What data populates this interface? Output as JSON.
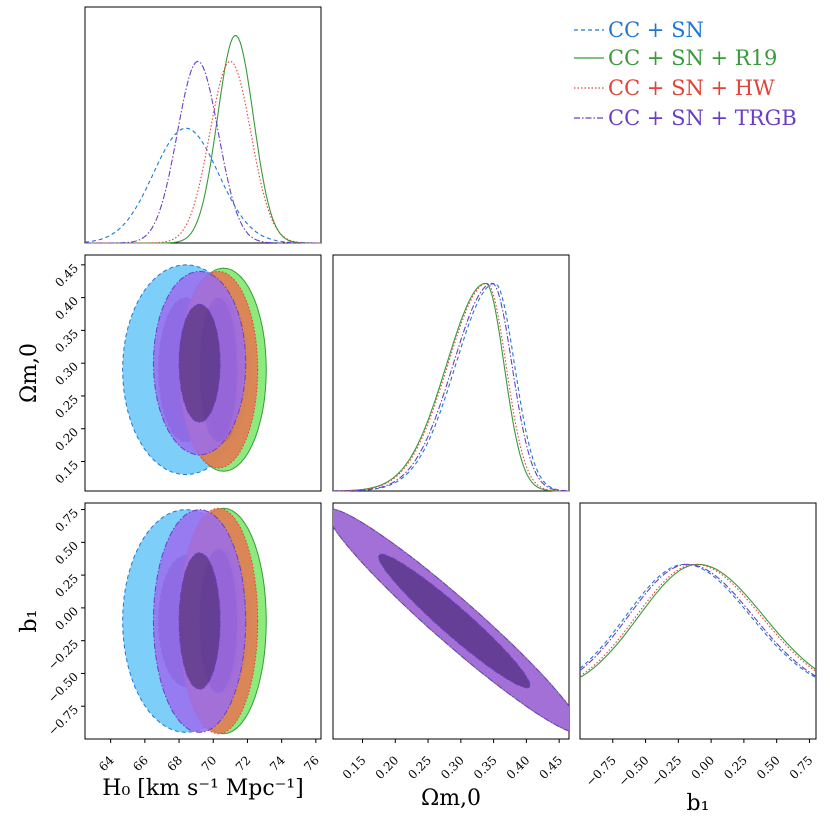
{
  "chart_data": {
    "type": "corner",
    "parameters": [
      {
        "key": "H0",
        "label": "H₀ [km s⁻¹ Mpc⁻¹]",
        "range": [
          62.5,
          76.3
        ],
        "ticks": [
          "64",
          "66",
          "68",
          "70",
          "72",
          "74",
          "76"
        ]
      },
      {
        "key": "Om",
        "label": "Ωm,0",
        "range": [
          0.105,
          0.465
        ],
        "ticks": [
          "0.15",
          "0.20",
          "0.25",
          "0.30",
          "0.35",
          "0.40",
          "0.45"
        ]
      },
      {
        "key": "b1",
        "label": "b₁",
        "range": [
          -1.0,
          0.8
        ],
        "ticks": [
          "−0.75",
          "−0.50",
          "−0.25",
          "0.00",
          "0.25",
          "0.50",
          "0.75"
        ]
      }
    ],
    "legend": {
      "position": "top-right"
    },
    "series": [
      {
        "name": "CC + SN",
        "color": "#1f77d4",
        "fill": "#66c7f8",
        "dash": "4,3",
        "H0": {
          "mean": 68.4,
          "sd": 1.9
        },
        "Om": {
          "mode": 0.352,
          "sd_left": 0.06,
          "sd_right": 0.03
        },
        "b1": {
          "mode": -0.2,
          "sd_left": 0.45,
          "sd_right": 0.5
        },
        "contours": {
          "H0_center": 68.4,
          "H0_half_width": [
            1.6,
            3.7
          ],
          "Om_center": 0.29,
          "Om_half_width": [
            0.11,
            0.16
          ],
          "b1_center": -0.1,
          "b1_half_width": [
            0.5,
            0.85
          ]
        }
      },
      {
        "name": "CC + SN + R19",
        "color": "#3a9a3a",
        "fill": "#77e866",
        "dash": "",
        "H0": {
          "mean": 71.3,
          "sd": 1.05
        },
        "Om": {
          "mode": 0.338,
          "sd_left": 0.06,
          "sd_right": 0.028
        },
        "b1": {
          "mode": -0.1,
          "sd_left": 0.45,
          "sd_right": 0.5
        },
        "contours": {
          "H0_center": 70.6,
          "H0_half_width": [
            1.0,
            2.5
          ],
          "Om_center": 0.29,
          "Om_half_width": [
            0.11,
            0.155
          ],
          "b1_center": -0.1,
          "b1_half_width": [
            0.55,
            0.86
          ]
        }
      },
      {
        "name": "CC + SN + HW",
        "color": "#e0433a",
        "fill": "#e8744f",
        "dash": "1.5,2",
        "H0": {
          "mean": 71.0,
          "sd": 1.2
        },
        "Om": {
          "mode": 0.34,
          "sd_left": 0.06,
          "sd_right": 0.029
        },
        "b1": {
          "mode": -0.12,
          "sd_left": 0.45,
          "sd_right": 0.5
        },
        "contours": {
          "H0_center": 70.3,
          "H0_half_width": [
            1.1,
            2.3
          ],
          "Om_center": 0.29,
          "Om_half_width": [
            0.11,
            0.15
          ],
          "b1_center": -0.1,
          "b1_half_width": [
            0.55,
            0.86
          ]
        }
      },
      {
        "name": "CC + SN + TRGB",
        "color": "#6a3fc1",
        "fill": "#9a6cf0",
        "dash": "6,2,1.5,2",
        "H0": {
          "mean": 69.1,
          "sd": 1.2
        },
        "Om": {
          "mode": 0.348,
          "sd_left": 0.06,
          "sd_right": 0.03
        },
        "b1": {
          "mode": -0.18,
          "sd_left": 0.45,
          "sd_right": 0.5
        },
        "contours": {
          "H0_center": 69.2,
          "H0_half_width": [
            1.2,
            2.7
          ],
          "Om_center": 0.3,
          "Om_half_width": [
            0.09,
            0.14
          ],
          "b1_center": -0.1,
          "b1_half_width": [
            0.52,
            0.85
          ]
        }
      }
    ]
  }
}
